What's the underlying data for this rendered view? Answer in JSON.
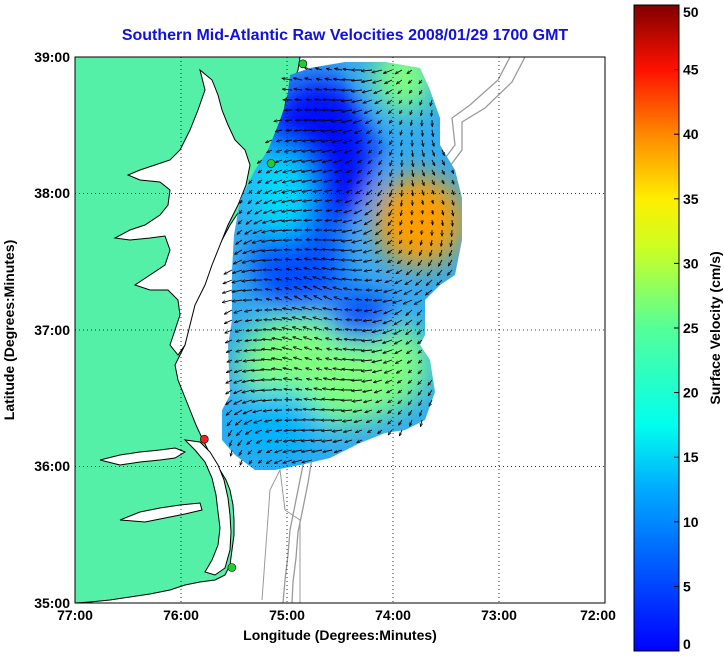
{
  "chart_data": {
    "type": "heatmap",
    "title": "Southern Mid-Atlantic Raw Velocities 2008/01/29 1700 GMT",
    "xlabel": "Longitude (Degrees:Minutes)",
    "ylabel": "Latitude (Degrees:Minutes)",
    "x_ticks": [
      "77:00",
      "76:00",
      "75:00",
      "74:00",
      "73:00",
      "72:00"
    ],
    "y_ticks": [
      "39:00",
      "38:00",
      "37:00",
      "36:00",
      "35:00"
    ],
    "xlim": [
      -77,
      -72
    ],
    "ylim": [
      35,
      39
    ],
    "grid": true,
    "colorbar": {
      "label": "Surface Velocity (cm/s)",
      "range": [
        0,
        50
      ],
      "ticks": [
        "0",
        "5",
        "10",
        "15",
        "20",
        "25",
        "30",
        "35",
        "40",
        "45",
        "50"
      ],
      "colormap": "jet"
    },
    "velocity_regions": [
      {
        "lon": -74.55,
        "lat": 36.75,
        "speed": 25
      },
      {
        "lon": -73.75,
        "lat": 37.8,
        "speed": 36
      },
      {
        "lon": -73.9,
        "lat": 38.85,
        "speed": 25
      },
      {
        "lon": -74.7,
        "lat": 38.3,
        "speed": 7
      },
      {
        "lon": -74.9,
        "lat": 37.5,
        "speed": 10
      },
      {
        "lon": -74.3,
        "lat": 37.1,
        "speed": 10
      },
      {
        "lon": -75.1,
        "lat": 36.3,
        "speed": 15
      },
      {
        "lon": -75.05,
        "lat": 38.0,
        "speed": 17
      }
    ],
    "stations": [
      {
        "lon": -74.85,
        "lat": 38.95,
        "color": "#22cc33"
      },
      {
        "lon": -75.15,
        "lat": 38.22,
        "color": "#22cc33"
      },
      {
        "lon": -75.78,
        "lat": 36.2,
        "color": "#ee2222"
      },
      {
        "lon": -75.52,
        "lat": 35.26,
        "color": "#22cc33"
      }
    ],
    "colors": {
      "land": "#55f0a8",
      "ocean": "#ffffff",
      "coastline": "#000000",
      "bathymetry": "#9a9a9a",
      "title": "#1010e0"
    }
  }
}
